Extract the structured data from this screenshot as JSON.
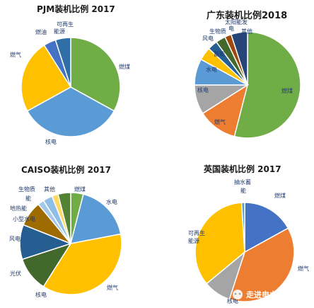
{
  "chart_data": [
    {
      "type": "pie",
      "title": "PJM装机比例 2017",
      "slices": [
        {
          "label": "燃煤",
          "value": 33,
          "color": "#70ad47"
        },
        {
          "label": "核电",
          "value": 34,
          "color": "#5b9bd5"
        },
        {
          "label": "燃气",
          "value": 24,
          "color": "#ffc000"
        },
        {
          "label": "燃油",
          "value": 4,
          "color": "#4472c4"
        },
        {
          "label": "可再生能源",
          "value": 5,
          "color": "#2e6fa8"
        }
      ]
    },
    {
      "type": "pie",
      "title": "广东装机比例2018",
      "slices": [
        {
          "label": "燃煤",
          "value": 54,
          "color": "#70ad47"
        },
        {
          "label": "燃气",
          "value": 12,
          "color": "#ed7d31"
        },
        {
          "label": "核电",
          "value": 9,
          "color": "#a5a5a5"
        },
        {
          "label": "水电",
          "value": 8,
          "color": "#5b9bd5"
        },
        {
          "label": "蓄能",
          "value": 4,
          "color": "#ffc000"
        },
        {
          "label": "风电",
          "value": 3,
          "color": "#255e91"
        },
        {
          "label": "生物质",
          "value": 3,
          "color": "#43682b"
        },
        {
          "label": "太阳能发电",
          "value": 2,
          "color": "#9e480e"
        },
        {
          "label": "其他",
          "value": 5,
          "color": "#264478"
        }
      ]
    },
    {
      "type": "pie",
      "title": "CAISO装机比例 2017",
      "slices": [
        {
          "label": "燃煤",
          "value": 4,
          "color": "#70ad47"
        },
        {
          "label": "水电",
          "value": 18,
          "color": "#5b9bd5"
        },
        {
          "label": "燃气",
          "value": 37,
          "color": "#ffc000"
        },
        {
          "label": "核电",
          "value": 11,
          "color": "#43682b"
        },
        {
          "label": "光伏",
          "value": 11,
          "color": "#255e91"
        },
        {
          "label": "风电",
          "value": 8,
          "color": "#9e6b00"
        },
        {
          "label": "小型水电",
          "value": 2,
          "color": "#a5c8ea"
        },
        {
          "label": "地热能",
          "value": 3,
          "color": "#8fbfe6"
        },
        {
          "label": "生物质能",
          "value": 2,
          "color": "#ffd966"
        },
        {
          "label": "其他",
          "value": 4,
          "color": "#548235"
        }
      ]
    },
    {
      "type": "pie",
      "title": "英国装机比例 2017",
      "slices": [
        {
          "label": "燃煤",
          "value": 17,
          "color": "#4472c4"
        },
        {
          "label": "燃气",
          "value": 38,
          "color": "#ed7d31"
        },
        {
          "label": "核电",
          "value": 9,
          "color": "#a5a5a5"
        },
        {
          "label": "可再生能源",
          "value": 35,
          "color": "#ffc000"
        },
        {
          "label": "抽水蓄能",
          "value": 1,
          "color": "#5b9bd5"
        }
      ]
    }
  ],
  "watermark": "走进电力市场"
}
